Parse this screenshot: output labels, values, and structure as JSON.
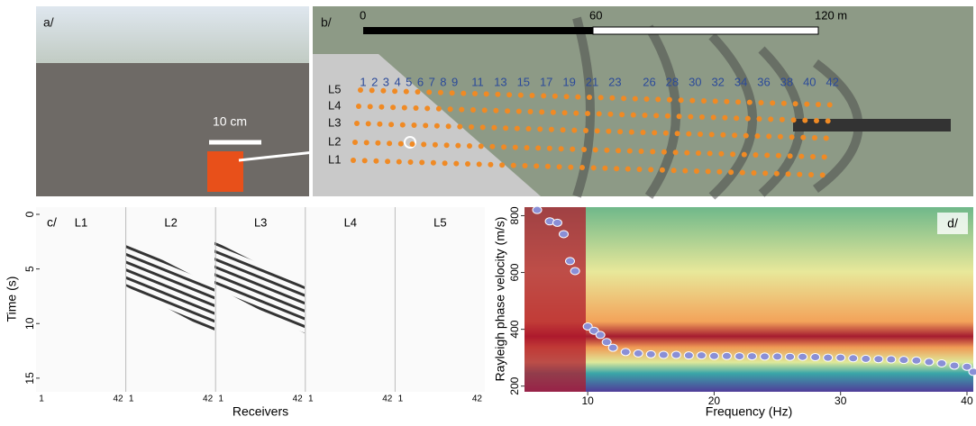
{
  "panel_a": {
    "label": "a/",
    "scale": "10 cm"
  },
  "panel_b": {
    "label": "b/",
    "scale_ticks": [
      "0",
      "60",
      "120 m"
    ],
    "lines": [
      "L5",
      "L4",
      "L3",
      "L2",
      "L1"
    ],
    "receivers": [
      "1",
      "2",
      "3",
      "4",
      "5",
      "6",
      "7",
      "8",
      "9",
      "11",
      "13",
      "15",
      "17",
      "19",
      "21",
      "23",
      "26",
      "28",
      "30",
      "32",
      "34",
      "36",
      "38",
      "40",
      "42"
    ]
  },
  "chart_data": [
    {
      "type": "seismogram",
      "label": "c/",
      "y_label": "Time (s)",
      "x_label": "Receivers",
      "ylim": [
        0,
        16
      ],
      "yticks": [
        0,
        5,
        10,
        15
      ],
      "panels": [
        "L1",
        "L2",
        "L3",
        "L4",
        "L5"
      ],
      "x_ends": [
        "1",
        "42"
      ]
    },
    {
      "type": "scatter",
      "label": "d/",
      "x_label": "Frequency (Hz)",
      "y_label": "Rayleigh phase velocity (m/s)",
      "xlim": [
        5,
        40.5
      ],
      "ylim": [
        180,
        830
      ],
      "xticks": [
        10,
        20,
        30,
        40
      ],
      "yticks": [
        200,
        400,
        600,
        800
      ],
      "color": "#8a8fd6",
      "x": [
        6,
        7,
        7.6,
        8.1,
        8.6,
        9.0,
        10,
        10.5,
        11,
        11.5,
        12,
        13,
        14,
        15,
        16,
        17,
        18,
        19,
        20,
        21,
        22,
        23,
        24,
        25,
        26,
        27,
        28,
        29,
        30,
        31,
        32,
        33,
        34,
        35,
        36,
        37,
        38,
        39,
        40,
        40.5
      ],
      "values": [
        820,
        780,
        775,
        735,
        640,
        605,
        410,
        395,
        380,
        355,
        335,
        320,
        315,
        312,
        310,
        310,
        308,
        308,
        306,
        306,
        305,
        305,
        304,
        304,
        303,
        303,
        302,
        300,
        300,
        298,
        296,
        295,
        294,
        292,
        290,
        285,
        280,
        272,
        268,
        250
      ]
    }
  ]
}
